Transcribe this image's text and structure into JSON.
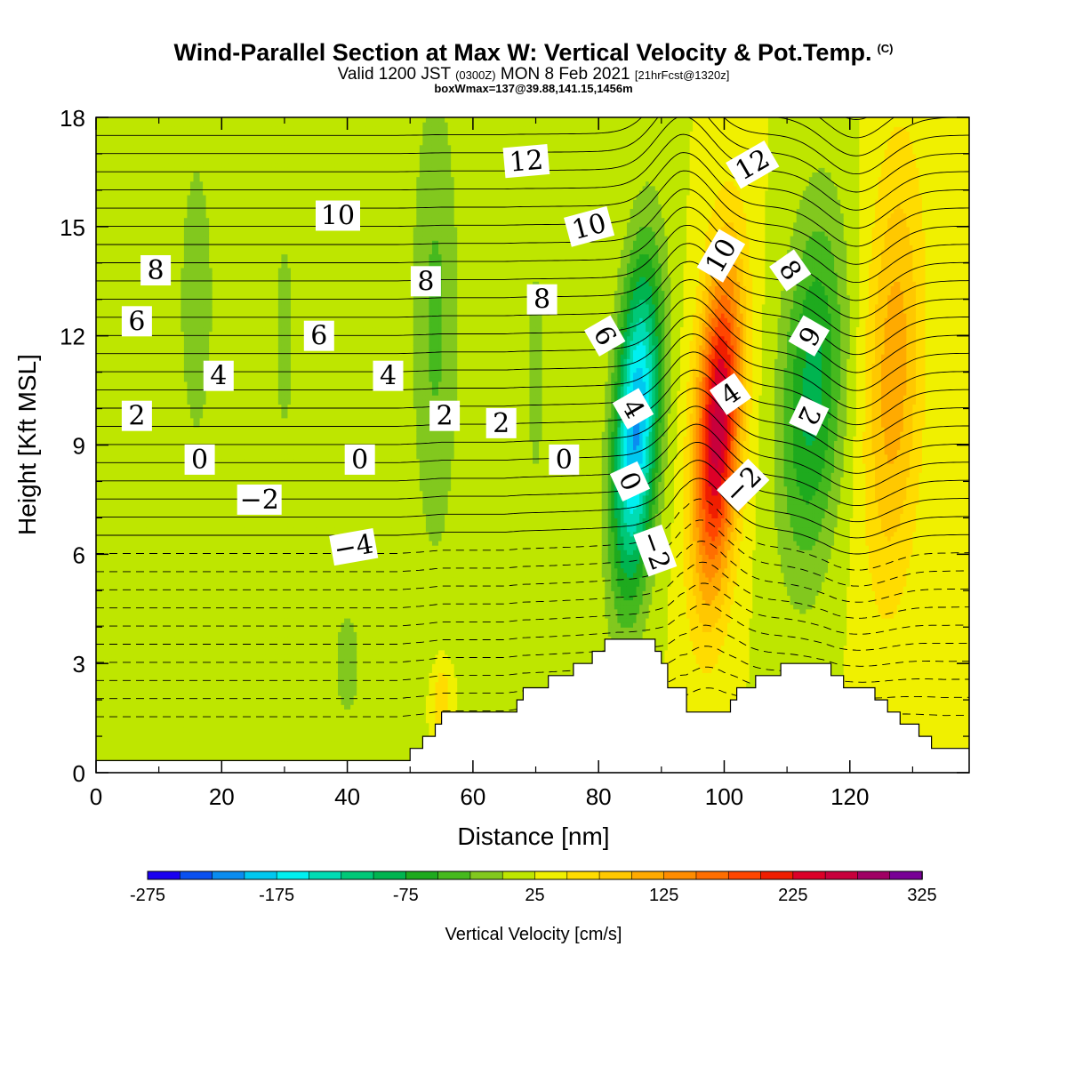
{
  "header": {
    "title": "Wind-Parallel Section at Max W: Vertical Velocity & Pot.Temp.",
    "title_mark": "(C)",
    "valid_prefix": "Valid 1200 JST",
    "valid_z": "(0300Z)",
    "valid_date": "MON 8 Feb 2021",
    "forecast": "[21hrFcst@1320z]",
    "box_info": "boxWmax=137@39.88,141.15,1456m"
  },
  "chart_data": {
    "type": "heatmap",
    "xlabel": "Distance [nm]",
    "ylabel": "Height [Kft MSL]",
    "xlim": [
      0,
      139
    ],
    "ylim": [
      0,
      18
    ],
    "x_ticks": [
      "0",
      "20",
      "40",
      "60",
      "80",
      "100",
      "120"
    ],
    "y_ticks": [
      "0",
      "3",
      "6",
      "9",
      "12",
      "15",
      "18"
    ],
    "colorbar": {
      "label": "Vertical Velocity [cm/s]",
      "tick_labels": [
        "-275",
        "-175",
        "-75",
        "25",
        "125",
        "225",
        "325"
      ],
      "levels": [
        -275,
        -250,
        -225,
        -200,
        -175,
        -150,
        -125,
        -100,
        -75,
        -50,
        -25,
        0,
        25,
        50,
        75,
        100,
        125,
        150,
        175,
        200,
        225,
        250,
        275,
        300,
        325
      ],
      "colors": [
        "#1a00f0",
        "#0a50f0",
        "#0a8cf0",
        "#00c8f0",
        "#00f0f0",
        "#00dcb4",
        "#00c878",
        "#00b450",
        "#1eaa1e",
        "#46b91e",
        "#82c81e",
        "#bee600",
        "#f0f000",
        "#ffdc00",
        "#ffc800",
        "#ffaa00",
        "#ff8c00",
        "#ff6e00",
        "#ff4600",
        "#f01e00",
        "#dc0028",
        "#c8003c",
        "#a00064",
        "#780096"
      ]
    },
    "terrain_kft": [
      [
        0,
        0.3
      ],
      [
        48,
        0.3
      ],
      [
        50,
        0.6
      ],
      [
        52,
        0.9
      ],
      [
        55,
        1.6
      ],
      [
        65,
        1.6
      ],
      [
        68,
        2.2
      ],
      [
        72,
        2.5
      ],
      [
        75,
        2.8
      ],
      [
        78,
        3.1
      ],
      [
        81,
        3.5
      ],
      [
        83,
        3.8
      ],
      [
        87,
        3.8
      ],
      [
        89,
        3.4
      ],
      [
        91,
        2.4
      ],
      [
        93,
        2.4
      ],
      [
        94,
        1.6
      ],
      [
        100,
        1.6
      ],
      [
        102,
        2.3
      ],
      [
        105,
        2.5
      ],
      [
        108,
        2.8
      ],
      [
        110,
        2.9
      ],
      [
        116,
        2.9
      ],
      [
        118,
        2.5
      ],
      [
        121,
        2.4
      ],
      [
        123,
        2.2
      ],
      [
        125,
        1.9
      ],
      [
        127,
        1.6
      ],
      [
        129,
        1.3
      ],
      [
        132,
        0.9
      ],
      [
        135,
        0.6
      ],
      [
        139,
        0.6
      ]
    ],
    "vertical_velocity_cm_s": {
      "background": 25,
      "features": [
        {
          "x": 86,
          "y": 9.5,
          "sx": 3.5,
          "sy": 4.5,
          "tilt": 0.28,
          "value": -230
        },
        {
          "x": 99,
          "y": 9.5,
          "sx": 3.5,
          "sy": 4.5,
          "tilt": 0.28,
          "value": 240
        },
        {
          "x": 114,
          "y": 10.5,
          "sx": 5.0,
          "sy": 5.0,
          "tilt": 0.25,
          "value": -110
        },
        {
          "x": 127,
          "y": 11.0,
          "sx": 4.5,
          "sy": 6.0,
          "tilt": 0.15,
          "value": 90
        },
        {
          "x": 16,
          "y": 13.0,
          "sx": 4.0,
          "sy": 6.0,
          "tilt": 0.0,
          "value": -35
        },
        {
          "x": 30,
          "y": 12.0,
          "sx": 3.5,
          "sy": 7.0,
          "tilt": 0.0,
          "value": -28
        },
        {
          "x": 54,
          "y": 12.5,
          "sx": 4.0,
          "sy": 7.0,
          "tilt": 0.0,
          "value": -55
        },
        {
          "x": 70,
          "y": 11.0,
          "sx": 2.5,
          "sy": 6.0,
          "tilt": 0.0,
          "value": -30
        },
        {
          "x": 40,
          "y": 3.0,
          "sx": 4.0,
          "sy": 3.0,
          "tilt": 0.0,
          "value": -30
        },
        {
          "x": 55,
          "y": 2.0,
          "sx": 1.5,
          "sy": 1.0,
          "tilt": 0.0,
          "value": 55
        }
      ]
    },
    "potential_temperature_c": {
      "levels": [
        -4,
        -2,
        0,
        2,
        4,
        6,
        8,
        10,
        12
      ],
      "labels": [
        {
          "text": "12",
          "x": 68.5,
          "y": 16.8,
          "angle": -5
        },
        {
          "text": "12",
          "x": 104.5,
          "y": 16.7,
          "angle": -30
        },
        {
          "text": "10",
          "x": 38.5,
          "y": 15.3,
          "angle": 0
        },
        {
          "text": "10",
          "x": 78.5,
          "y": 15.0,
          "angle": -15
        },
        {
          "text": "10",
          "x": 99.5,
          "y": 14.2,
          "angle": -60
        },
        {
          "text": "8",
          "x": 9.5,
          "y": 13.8,
          "angle": 0
        },
        {
          "text": "8",
          "x": 52.5,
          "y": 13.5,
          "angle": 0
        },
        {
          "text": "8",
          "x": 71.0,
          "y": 13.0,
          "angle": 0
        },
        {
          "text": "8",
          "x": 110.5,
          "y": 13.8,
          "angle": 55
        },
        {
          "text": "6",
          "x": 6.5,
          "y": 12.4,
          "angle": 0
        },
        {
          "text": "6",
          "x": 35.5,
          "y": 12.0,
          "angle": 0
        },
        {
          "text": "6",
          "x": 81.0,
          "y": 12.0,
          "angle": 60
        },
        {
          "text": "6",
          "x": 113.5,
          "y": 12.0,
          "angle": 120
        },
        {
          "text": "4",
          "x": 19.5,
          "y": 10.9,
          "angle": 0
        },
        {
          "text": "4",
          "x": 46.5,
          "y": 10.9,
          "angle": 0
        },
        {
          "text": "4",
          "x": 85.5,
          "y": 10.0,
          "angle": 60
        },
        {
          "text": "4",
          "x": 101.0,
          "y": 10.4,
          "angle": -35
        },
        {
          "text": "2",
          "x": 6.5,
          "y": 9.8,
          "angle": 0
        },
        {
          "text": "2",
          "x": 55.5,
          "y": 9.8,
          "angle": 0
        },
        {
          "text": "2",
          "x": 64.5,
          "y": 9.6,
          "angle": 0
        },
        {
          "text": "2",
          "x": 113.5,
          "y": 9.8,
          "angle": 115
        },
        {
          "text": "0",
          "x": 16.5,
          "y": 8.6,
          "angle": 0
        },
        {
          "text": "0",
          "x": 42.0,
          "y": 8.6,
          "angle": 0
        },
        {
          "text": "0",
          "x": 74.5,
          "y": 8.6,
          "angle": 0
        },
        {
          "text": "0",
          "x": 85.0,
          "y": 8.0,
          "angle": 65
        },
        {
          "text": "-2",
          "x": 26.0,
          "y": 7.5,
          "angle": 0
        },
        {
          "text": "-2",
          "x": 89.0,
          "y": 6.1,
          "angle": 70
        },
        {
          "text": "-2",
          "x": 103.0,
          "y": 7.9,
          "angle": -45
        },
        {
          "text": "-4",
          "x": 41.0,
          "y": 6.2,
          "angle": -10
        }
      ]
    }
  }
}
